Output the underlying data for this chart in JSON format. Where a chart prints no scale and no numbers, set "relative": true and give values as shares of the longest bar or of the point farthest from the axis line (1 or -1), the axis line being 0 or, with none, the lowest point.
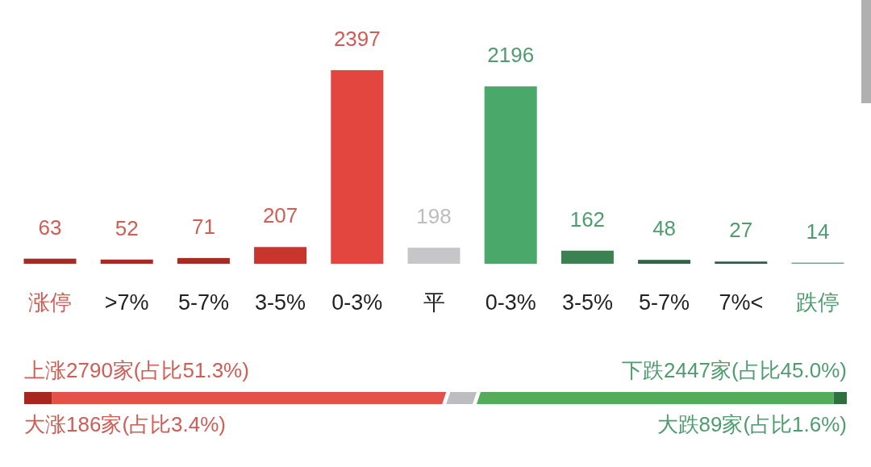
{
  "chart_data": [
    {
      "type": "bar",
      "categories": [
        "涨停",
        ">7%",
        "5-7%",
        "3-5%",
        "0-3%",
        "平",
        "0-3%",
        "3-5%",
        "5-7%",
        "7%<",
        "跌停"
      ],
      "values": [
        63,
        52,
        71,
        207,
        2397,
        198,
        2196,
        162,
        48,
        27,
        14
      ],
      "colors": [
        "#a82a22",
        "#a82a22",
        "#a82a22",
        "#c8352d",
        "#e2463f",
        "#c6c6c8",
        "#4aa86a",
        "#3b8152",
        "#2f6448",
        "#2d5a46",
        "#6f9e86"
      ],
      "data_labels": true,
      "tick_labels": "x"
    },
    {
      "type": "bar",
      "orientation": "horizontal",
      "stacked": true,
      "relative": true,
      "categories": [
        null
      ],
      "series": [
        {
          "color": "#a8261e",
          "values": [
            0.034
          ]
        },
        {
          "color": "#e4514b",
          "values": [
            0.479
          ]
        },
        {
          "color": "#bdbdc0",
          "values": [
            0.037
          ]
        },
        {
          "color": "#55ad5c",
          "values": [
            0.434
          ]
        },
        {
          "color": "#2f7040",
          "values": [
            0.016
          ]
        }
      ],
      "annotations": [
        "上涨2790家(占比51.3%)",
        "下跌2447家(占比45.0%)",
        "大涨186家(占比3.4%)",
        "大跌89家(占比1.6%)"
      ]
    }
  ]
}
